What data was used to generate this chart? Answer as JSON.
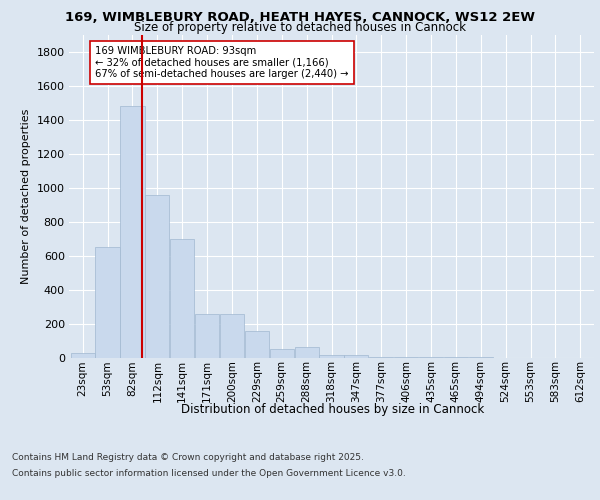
{
  "title_line1": "169, WIMBLEBURY ROAD, HEATH HAYES, CANNOCK, WS12 2EW",
  "title_line2": "Size of property relative to detached houses in Cannock",
  "xlabel": "Distribution of detached houses by size in Cannock",
  "ylabel": "Number of detached properties",
  "categories": [
    "23sqm",
    "53sqm",
    "82sqm",
    "112sqm",
    "141sqm",
    "171sqm",
    "200sqm",
    "229sqm",
    "259sqm",
    "288sqm",
    "318sqm",
    "347sqm",
    "377sqm",
    "406sqm",
    "435sqm",
    "465sqm",
    "494sqm",
    "524sqm",
    "553sqm",
    "583sqm",
    "612sqm"
  ],
  "values": [
    25,
    650,
    1480,
    960,
    700,
    255,
    255,
    155,
    50,
    60,
    15,
    15,
    5,
    2,
    2,
    1,
    1,
    0,
    0,
    0,
    0
  ],
  "bar_color": "#c9d9ed",
  "bar_edge_color": "#a0b8d0",
  "background_color": "#dce6f1",
  "plot_bg_color": "#dce6f1",
  "grid_color": "#ffffff",
  "property_line_color": "#cc0000",
  "annotation_text": "169 WIMBLEBURY ROAD: 93sqm\n← 32% of detached houses are smaller (1,166)\n67% of semi-detached houses are larger (2,440) →",
  "annotation_box_color": "#ffffff",
  "annotation_box_edge": "#cc0000",
  "ylim": [
    0,
    1900
  ],
  "yticks": [
    0,
    200,
    400,
    600,
    800,
    1000,
    1200,
    1400,
    1600,
    1800
  ],
  "footer_line1": "Contains HM Land Registry data © Crown copyright and database right 2025.",
  "footer_line2": "Contains public sector information licensed under the Open Government Licence v3.0."
}
